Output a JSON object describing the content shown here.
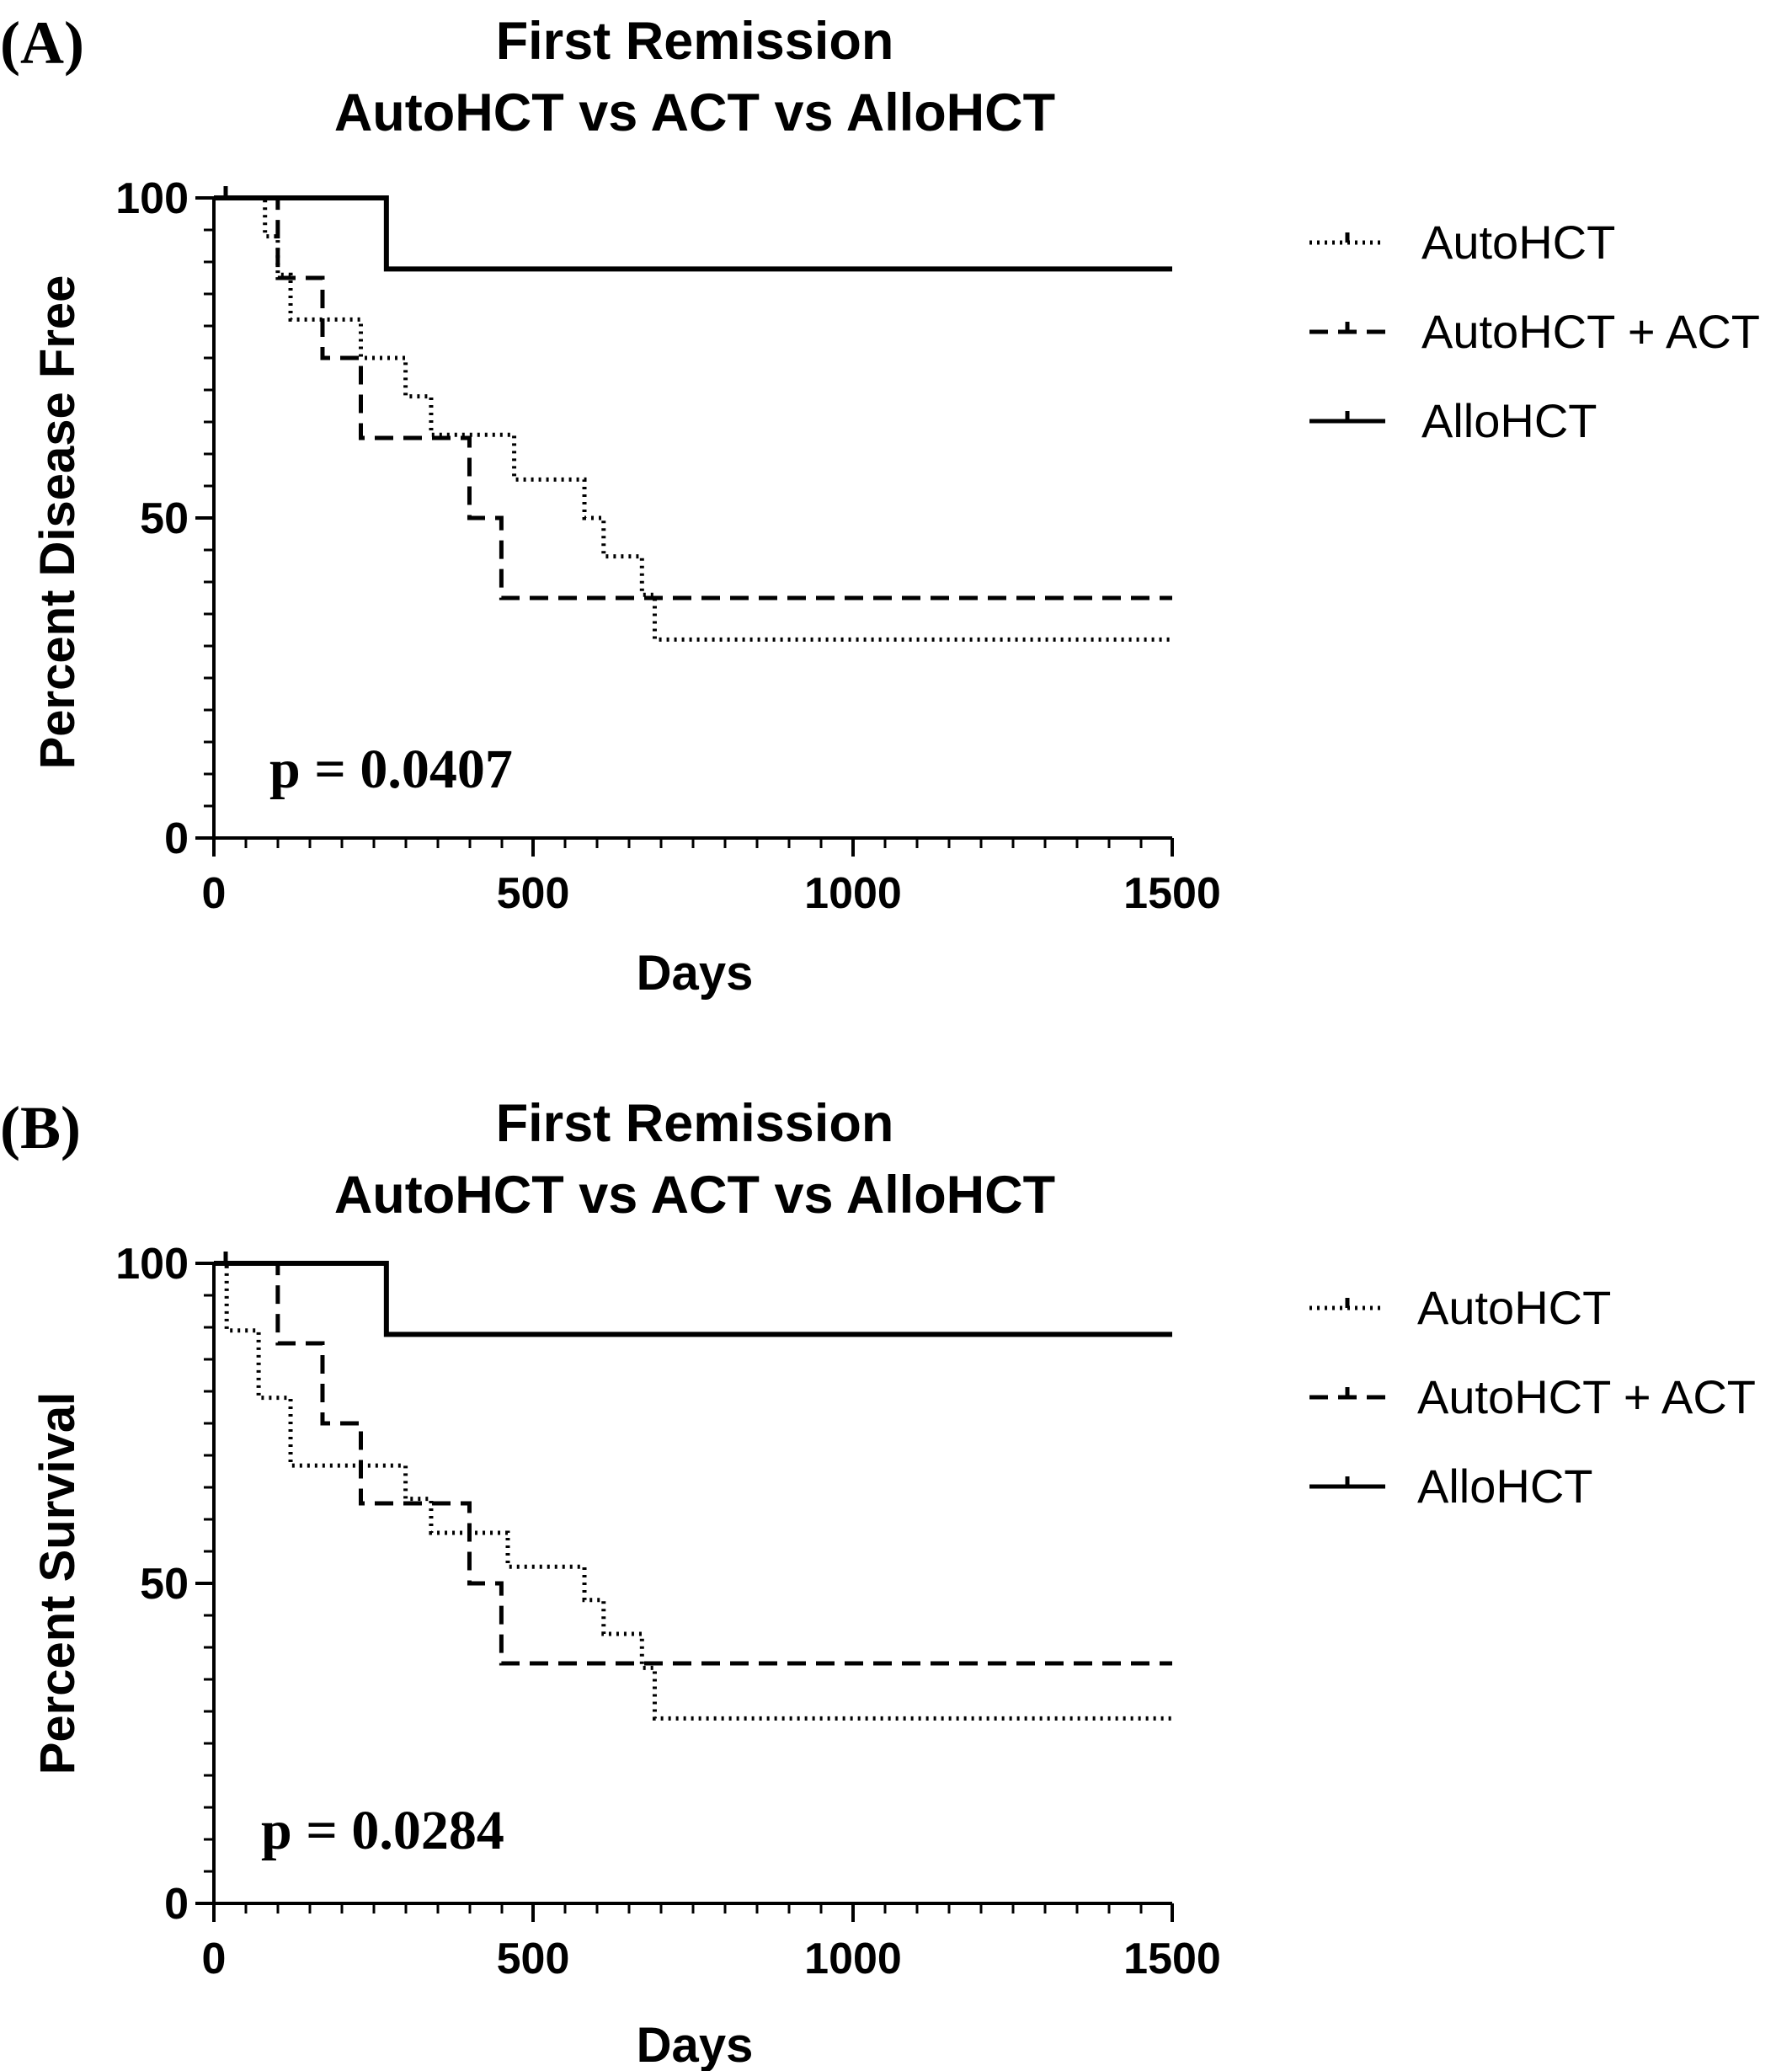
{
  "chart_data": [
    {
      "type": "line",
      "panel_label": "(A)",
      "title": "First Remission",
      "subtitle": "AutoHCT vs ACT vs AlloHCT",
      "xlabel": "Days",
      "ylabel": "Percent Disease Free",
      "xlim": [
        0,
        1500
      ],
      "ylim": [
        0,
        100
      ],
      "xticks": [
        "0",
        "500",
        "1000",
        "1500"
      ],
      "yticks": [
        "0",
        "50",
        "100"
      ],
      "grid": false,
      "legend_position": "right",
      "annotation": "p = 0.0407",
      "series": [
        {
          "name": "AutoHCT",
          "style": "dotted",
          "x": [
            0,
            80,
            100,
            120,
            230,
            300,
            340,
            470,
            580,
            610,
            670,
            690,
            1500
          ],
          "y": [
            100,
            94,
            88,
            81,
            75,
            69,
            63,
            56,
            50,
            44,
            38,
            31,
            31
          ]
        },
        {
          "name": "AutoHCT + ACT",
          "style": "dashed",
          "x": [
            0,
            100,
            170,
            230,
            400,
            450,
            1500
          ],
          "y": [
            100,
            87.5,
            75,
            62.5,
            50,
            37.5,
            37.5
          ]
        },
        {
          "name": "AlloHCT",
          "style": "solid",
          "x": [
            0,
            270,
            1500
          ],
          "y": [
            100,
            88.9,
            88.9
          ]
        }
      ]
    },
    {
      "type": "line",
      "panel_label": "(B)",
      "title": "First Remission",
      "subtitle": "AutoHCT vs ACT vs AlloHCT",
      "xlabel": "Days",
      "ylabel": "Percent Survival",
      "xlim": [
        0,
        1500
      ],
      "ylim": [
        0,
        100
      ],
      "xticks": [
        "0",
        "500",
        "1000",
        "1500"
      ],
      "yticks": [
        "0",
        "50",
        "100"
      ],
      "grid": false,
      "legend_position": "right",
      "annotation": "p = 0.0284",
      "series": [
        {
          "name": "AutoHCT",
          "style": "dotted",
          "x": [
            0,
            20,
            70,
            120,
            300,
            340,
            460,
            580,
            610,
            670,
            690,
            1500
          ],
          "y": [
            100,
            89.5,
            79,
            68.4,
            63.2,
            57.9,
            52.6,
            47.4,
            42.1,
            36.8,
            28.9,
            28.9
          ]
        },
        {
          "name": "AutoHCT + ACT",
          "style": "dashed",
          "x": [
            0,
            100,
            170,
            230,
            400,
            450,
            1500
          ],
          "y": [
            100,
            87.5,
            75,
            62.5,
            50,
            37.5,
            37.5
          ]
        },
        {
          "name": "AlloHCT",
          "style": "solid",
          "x": [
            0,
            270,
            1500
          ],
          "y": [
            100,
            88.9,
            88.9
          ]
        }
      ]
    }
  ]
}
